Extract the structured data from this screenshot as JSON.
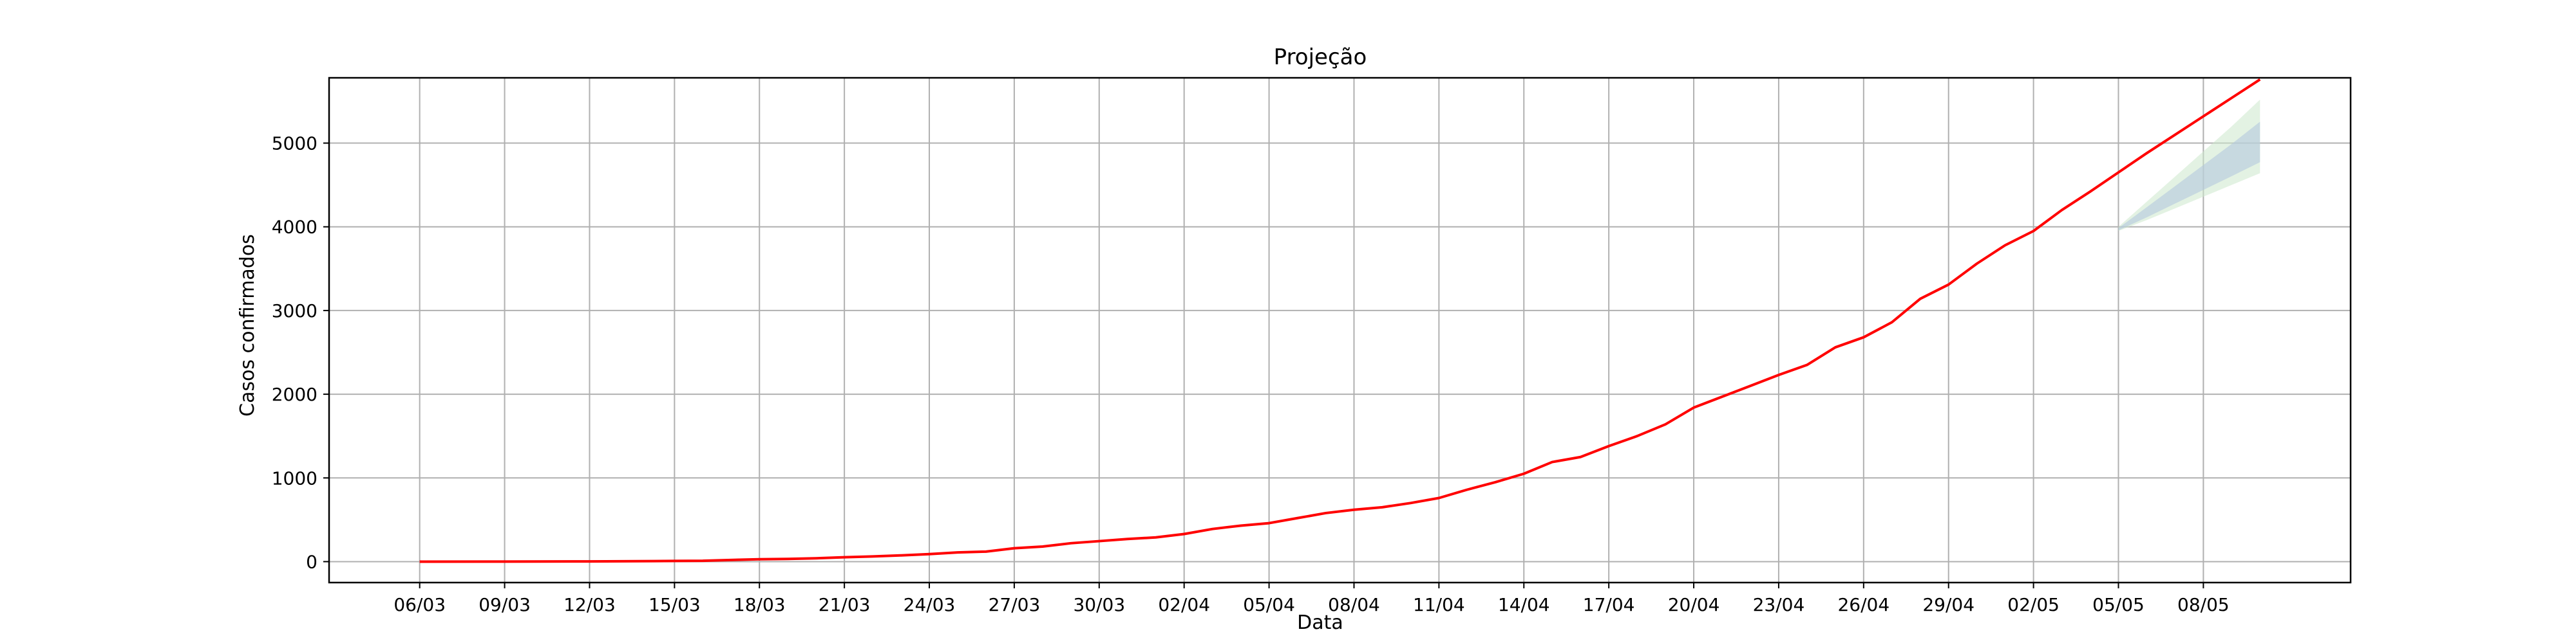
{
  "chart_data": {
    "type": "line",
    "title": "Projeção",
    "xlabel": "Data",
    "ylabel": "Casos confirmados",
    "grid": true,
    "x_start": "06/03",
    "x_tick_labels": [
      "06/03",
      "09/03",
      "12/03",
      "15/03",
      "18/03",
      "21/03",
      "24/03",
      "27/03",
      "30/03",
      "02/04",
      "05/04",
      "08/04",
      "11/04",
      "14/04",
      "17/04",
      "20/04",
      "23/04",
      "26/04",
      "29/04",
      "02/05",
      "05/05",
      "08/05"
    ],
    "y_ticks": [
      0,
      1000,
      2000,
      3000,
      4000,
      5000
    ],
    "xlim_days": [
      -3.2,
      68.2
    ],
    "ylim": [
      -250,
      5780
    ],
    "series": [
      {
        "type": "line",
        "color": "#ff0000",
        "x": [
          0,
          3,
          6,
          9,
          10,
          11,
          12,
          13,
          14,
          15,
          16,
          17,
          18,
          19,
          20,
          21,
          22,
          23,
          24,
          25,
          26,
          27,
          28,
          29,
          30,
          31,
          32,
          33,
          34,
          35,
          36,
          37,
          38,
          39,
          40,
          41,
          42,
          43,
          44,
          45,
          46,
          47,
          48,
          49,
          50,
          51,
          52,
          53,
          54,
          55,
          56,
          57,
          58,
          59,
          60,
          61,
          62,
          63,
          64,
          65
        ],
        "y": [
          0,
          1,
          3,
          8,
          10,
          20,
          28,
          32,
          40,
          52,
          62,
          75,
          90,
          110,
          120,
          160,
          180,
          220,
          245,
          270,
          290,
          330,
          390,
          430,
          460,
          520,
          580,
          620,
          650,
          700,
          760,
          860,
          950,
          1050,
          1190,
          1250,
          1380,
          1500,
          1640,
          1840,
          1970,
          2100,
          2230,
          2350,
          2560,
          2680,
          2860,
          3140,
          3310,
          3560,
          3780,
          3950,
          4200,
          4420,
          4650,
          4880,
          5100,
          5320,
          5540,
          5760
        ]
      }
    ],
    "projection_band": {
      "x": [
        60,
        61,
        62,
        63,
        64,
        65
      ],
      "lower": [
        3950,
        4080,
        4220,
        4360,
        4500,
        4640
      ],
      "upper": [
        4000,
        4300,
        4600,
        4900,
        5200,
        5520
      ],
      "colors": [
        "#b0c4de",
        "#cce8cc"
      ]
    }
  }
}
